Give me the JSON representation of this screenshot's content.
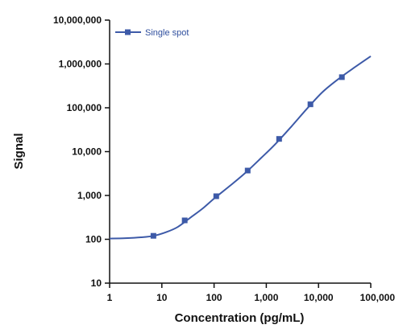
{
  "chart_data": {
    "type": "line",
    "xlabel": "Concentration (pg/mL)",
    "ylabel": "Signal",
    "x_scale": "log",
    "y_scale": "log",
    "xlim": [
      1,
      100000
    ],
    "ylim": [
      10,
      10000000
    ],
    "x_ticks": [
      {
        "value": 1,
        "label": "1"
      },
      {
        "value": 10,
        "label": "10"
      },
      {
        "value": 100,
        "label": "100"
      },
      {
        "value": 1000,
        "label": "1,000"
      },
      {
        "value": 10000,
        "label": "10,000"
      },
      {
        "value": 100000,
        "label": "100,000"
      }
    ],
    "y_ticks": [
      {
        "value": 10,
        "label": "10"
      },
      {
        "value": 100,
        "label": "100"
      },
      {
        "value": 1000,
        "label": "1,000"
      },
      {
        "value": 10000,
        "label": "10,000"
      },
      {
        "value": 100000,
        "label": "100,000"
      },
      {
        "value": 1000000,
        "label": "1,000,000"
      },
      {
        "value": 10000000,
        "label": "10,000,000"
      }
    ],
    "grid": false,
    "legend_position": "top-left",
    "series": [
      {
        "name": "Single spot",
        "color": "#3d5aa8",
        "marker": "square",
        "points": [
          {
            "x": 6.9,
            "y": 120
          },
          {
            "x": 27.4,
            "y": 270
          },
          {
            "x": 110,
            "y": 960
          },
          {
            "x": 440,
            "y": 3700
          },
          {
            "x": 1760,
            "y": 19500
          },
          {
            "x": 7000,
            "y": 120000
          },
          {
            "x": 28000,
            "y": 500000
          }
        ],
        "fit_curve": [
          {
            "x": 1,
            "y": 104
          },
          {
            "x": 2,
            "y": 106
          },
          {
            "x": 4,
            "y": 111
          },
          {
            "x": 7,
            "y": 120
          },
          {
            "x": 12,
            "y": 145
          },
          {
            "x": 20,
            "y": 190
          },
          {
            "x": 35,
            "y": 310
          },
          {
            "x": 60,
            "y": 500
          },
          {
            "x": 100,
            "y": 850
          },
          {
            "x": 200,
            "y": 1650
          },
          {
            "x": 400,
            "y": 3300
          },
          {
            "x": 800,
            "y": 7200
          },
          {
            "x": 1500,
            "y": 15000
          },
          {
            "x": 3000,
            "y": 37000
          },
          {
            "x": 6000,
            "y": 95000
          },
          {
            "x": 12000,
            "y": 230000
          },
          {
            "x": 25000,
            "y": 470000
          },
          {
            "x": 50000,
            "y": 850000
          },
          {
            "x": 100000,
            "y": 1500000
          }
        ]
      }
    ]
  }
}
